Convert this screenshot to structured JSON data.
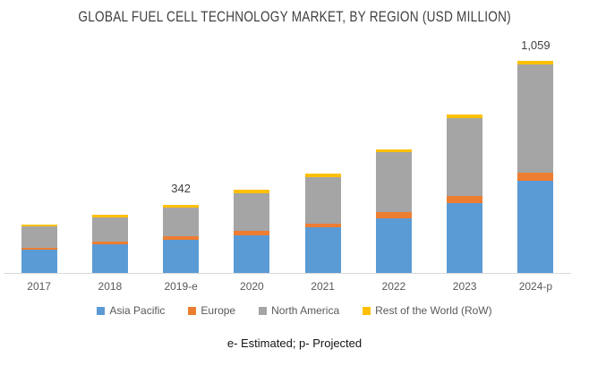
{
  "chart_data": {
    "type": "bar",
    "stacked": true,
    "title": "GLOBAL FUEL CELL TECHNOLOGY MARKET, BY REGION (USD MILLION)",
    "categories": [
      "2017",
      "2018",
      "2019-e",
      "2020",
      "2021",
      "2022",
      "2023",
      "2024-p"
    ],
    "series": [
      {
        "name": "Asia Pacific",
        "color": "#5B9BD5",
        "values": [
          115,
          142,
          167,
          190,
          226,
          275,
          350,
          460
        ]
      },
      {
        "name": "Europe",
        "color": "#ED7D31",
        "values": [
          9,
          13,
          18,
          22,
          22,
          31,
          35,
          40
        ]
      },
      {
        "name": "North America",
        "color": "#A5A5A5",
        "values": [
          107,
          124,
          140,
          186,
          230,
          297,
          390,
          541
        ]
      },
      {
        "name": "Rest of the World (RoW)",
        "color": "#FFC000",
        "values": [
          13,
          13,
          17,
          18,
          18,
          15,
          18,
          18
        ]
      }
    ],
    "totals": [
      244,
      292,
      342,
      416,
      496,
      618,
      793,
      1059
    ],
    "annotations": [
      "",
      "",
      "342",
      "",
      "",
      "",
      "",
      "1,059"
    ],
    "ylim": [
      0,
      1100
    ],
    "grid": false,
    "legend_position": "bottom",
    "axis_line_color": "#D9D9D9",
    "footnote": "e- Estimated; p- Projected"
  }
}
